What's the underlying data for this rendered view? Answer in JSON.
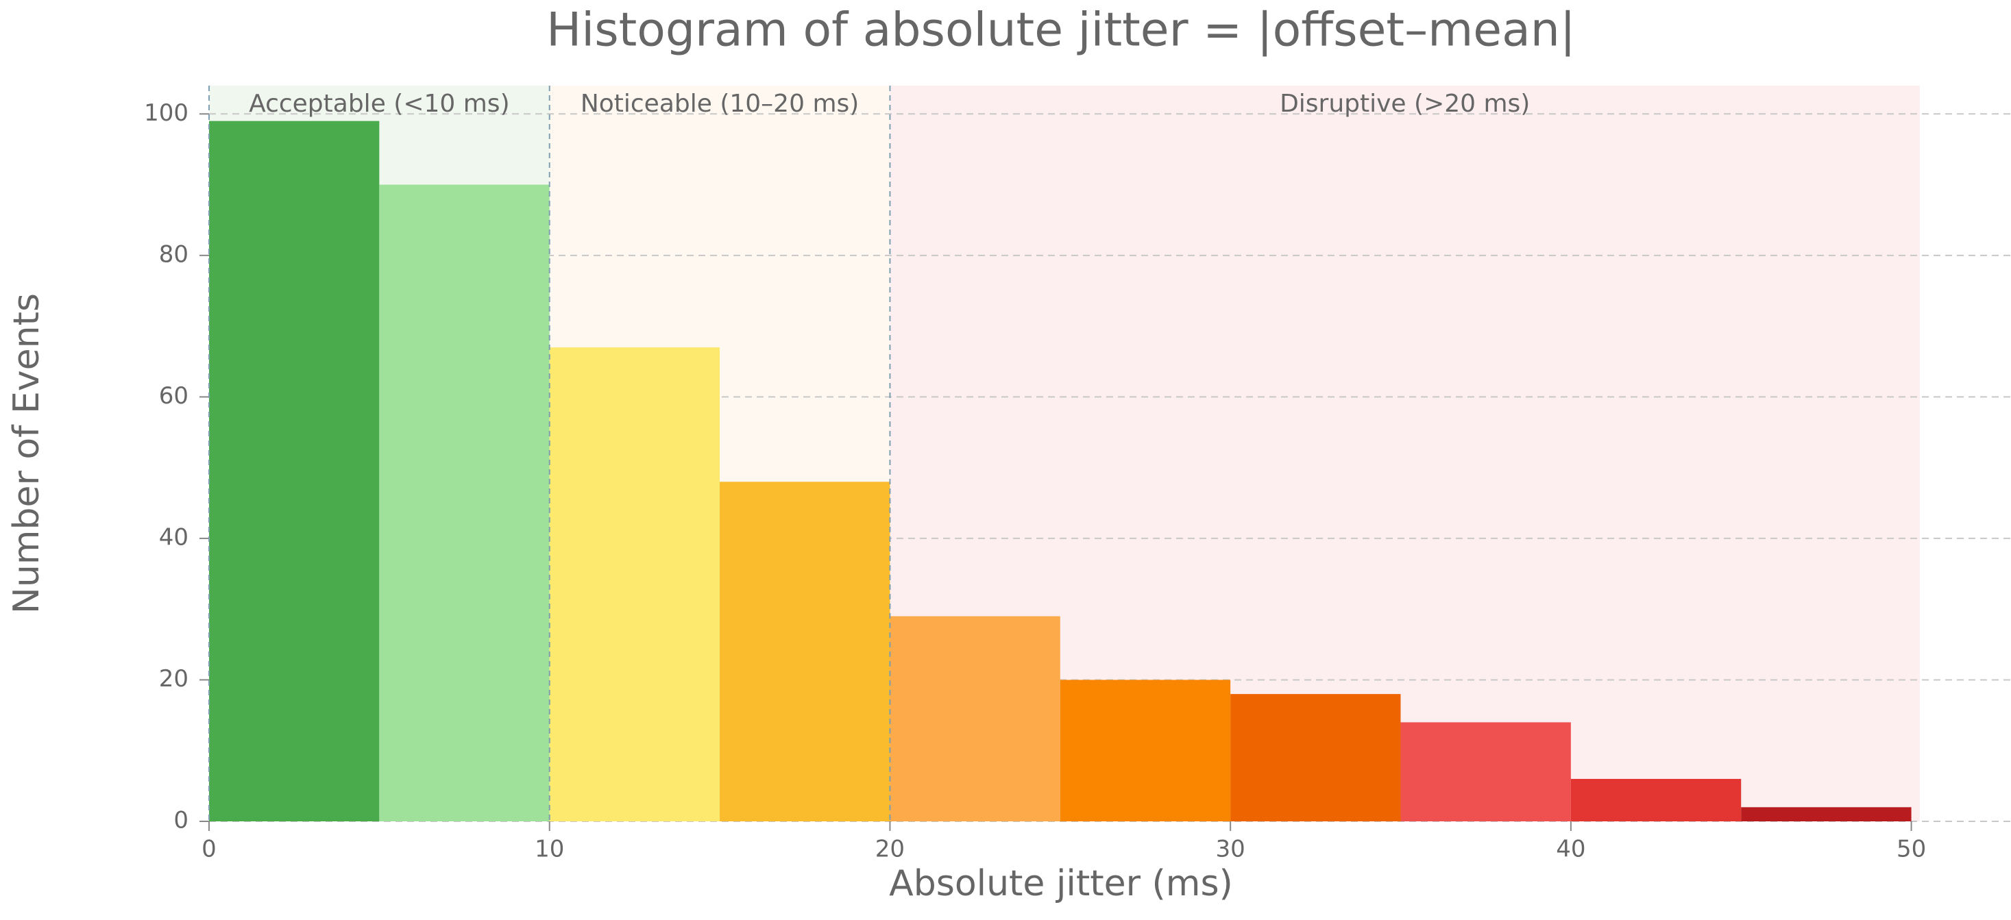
{
  "chart_data": {
    "type": "histogram",
    "title": "Histogram of absolute jitter = |offset–mean|",
    "x_label": "Absolute jitter (ms)",
    "y_label": "Number of Events",
    "bins": [
      0,
      5,
      10,
      15,
      20,
      25,
      30,
      35,
      40,
      45,
      50
    ],
    "values": [
      99,
      90,
      67,
      48,
      29,
      20,
      18,
      14,
      6,
      2
    ],
    "colors": [
      "#4aab4c",
      "#9fe09a",
      "#fee96f",
      "#fabb2c",
      "#fdaa4a",
      "#fa8600",
      "#ee6500",
      "#ef5050",
      "#e33633",
      "#b91c1e"
    ],
    "regions": [
      {
        "label": "Acceptable (<10 ms)",
        "start": 0,
        "end": 10,
        "color": "#f0f7ef"
      },
      {
        "label": "Noticeable (10–20 ms)",
        "start": 10,
        "end": 20,
        "color": "#fef8f1"
      },
      {
        "label": "Disruptive (>20 ms)",
        "start": 20,
        "end": 50.25,
        "color": "#fdeff0"
      }
    ],
    "xlim": [
      0,
      50.25
    ],
    "ylim": [
      0,
      104
    ],
    "xticks": [
      0,
      10,
      20,
      30,
      40,
      50
    ],
    "yticks": [
      0,
      20,
      40,
      60,
      80,
      100
    ],
    "grid": true
  }
}
